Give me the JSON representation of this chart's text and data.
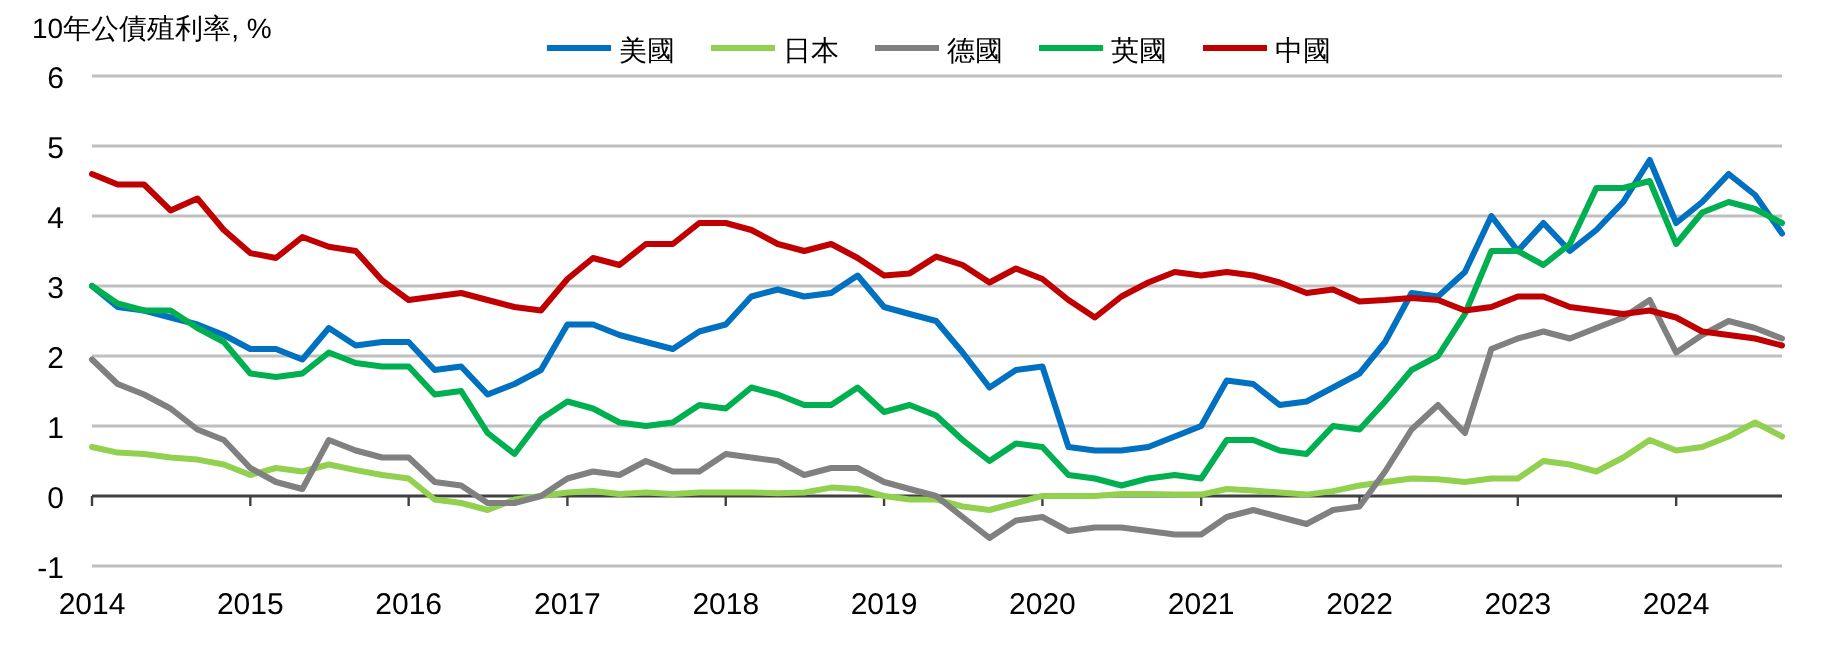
{
  "chart_data": {
    "type": "line",
    "ylabel": "10年公債殖利率, %",
    "legend": "top",
    "grid": "y",
    "line_style": "solid",
    "marker": "none",
    "x": [
      "2014-01",
      "2014-03",
      "2014-05",
      "2014-07",
      "2014-09",
      "2014-11",
      "2015-01",
      "2015-03",
      "2015-05",
      "2015-07",
      "2015-09",
      "2015-11",
      "2016-01",
      "2016-03",
      "2016-05",
      "2016-07",
      "2016-09",
      "2016-11",
      "2017-01",
      "2017-03",
      "2017-05",
      "2017-07",
      "2017-09",
      "2017-11",
      "2018-01",
      "2018-03",
      "2018-05",
      "2018-07",
      "2018-09",
      "2018-11",
      "2019-01",
      "2019-03",
      "2019-05",
      "2019-07",
      "2019-09",
      "2019-11",
      "2020-01",
      "2020-03",
      "2020-05",
      "2020-07",
      "2020-09",
      "2020-11",
      "2021-01",
      "2021-03",
      "2021-05",
      "2021-07",
      "2021-09",
      "2021-11",
      "2022-01",
      "2022-03",
      "2022-05",
      "2022-07",
      "2022-09",
      "2022-11",
      "2023-01",
      "2023-03",
      "2023-05",
      "2023-07",
      "2023-09",
      "2023-11",
      "2024-01",
      "2024-03",
      "2024-05",
      "2024-07",
      "2024-09"
    ],
    "xlim": [
      "2014-01",
      "2024-09"
    ],
    "xticks": [
      "2014",
      "2015",
      "2016",
      "2017",
      "2018",
      "2019",
      "2020",
      "2021",
      "2022",
      "2023",
      "2024"
    ],
    "ylim": [
      -1,
      6
    ],
    "yticks": [
      -1,
      0,
      1,
      2,
      3,
      4,
      5,
      6
    ],
    "series": [
      {
        "name": "美國",
        "color": "#0070c0",
        "values": [
          3.0,
          2.7,
          2.65,
          2.55,
          2.45,
          2.3,
          2.1,
          2.1,
          1.95,
          2.4,
          2.15,
          2.2,
          2.2,
          1.8,
          1.85,
          1.45,
          1.6,
          1.8,
          2.45,
          2.45,
          2.3,
          2.2,
          2.1,
          2.35,
          2.45,
          2.85,
          2.95,
          2.85,
          2.9,
          3.15,
          2.7,
          2.6,
          2.5,
          2.05,
          1.55,
          1.8,
          1.85,
          0.7,
          0.65,
          0.65,
          0.7,
          0.85,
          1.0,
          1.65,
          1.6,
          1.3,
          1.35,
          1.55,
          1.75,
          2.2,
          2.9,
          2.85,
          3.2,
          4.0,
          3.5,
          3.9,
          3.5,
          3.8,
          4.2,
          4.8,
          3.9,
          4.2,
          4.6,
          4.3,
          3.75
        ]
      },
      {
        "name": "日本",
        "color": "#92d050",
        "values": [
          0.7,
          0.62,
          0.6,
          0.55,
          0.52,
          0.45,
          0.3,
          0.4,
          0.35,
          0.45,
          0.37,
          0.3,
          0.25,
          -0.05,
          -0.1,
          -0.2,
          -0.05,
          0.0,
          0.05,
          0.07,
          0.03,
          0.05,
          0.03,
          0.05,
          0.05,
          0.05,
          0.04,
          0.05,
          0.12,
          0.1,
          0.0,
          -0.05,
          -0.05,
          -0.15,
          -0.2,
          -0.1,
          0.0,
          0.0,
          0.0,
          0.03,
          0.03,
          0.02,
          0.02,
          0.1,
          0.08,
          0.05,
          0.02,
          0.07,
          0.15,
          0.2,
          0.25,
          0.24,
          0.2,
          0.25,
          0.25,
          0.5,
          0.45,
          0.35,
          0.55,
          0.8,
          0.65,
          0.7,
          0.85,
          1.05,
          0.85
        ]
      },
      {
        "name": "德國",
        "color": "#808080",
        "values": [
          1.95,
          1.6,
          1.45,
          1.25,
          0.95,
          0.8,
          0.4,
          0.2,
          0.1,
          0.8,
          0.65,
          0.55,
          0.55,
          0.2,
          0.15,
          -0.1,
          -0.1,
          0.0,
          0.25,
          0.35,
          0.3,
          0.5,
          0.35,
          0.35,
          0.6,
          0.55,
          0.5,
          0.3,
          0.4,
          0.4,
          0.2,
          0.1,
          0.0,
          -0.3,
          -0.6,
          -0.35,
          -0.3,
          -0.5,
          -0.45,
          -0.45,
          -0.5,
          -0.55,
          -0.55,
          -0.3,
          -0.2,
          -0.3,
          -0.4,
          -0.2,
          -0.15,
          0.35,
          0.95,
          1.3,
          0.9,
          2.1,
          2.25,
          2.35,
          2.25,
          2.4,
          2.55,
          2.8,
          2.05,
          2.3,
          2.5,
          2.4,
          2.25
        ]
      },
      {
        "name": "英國",
        "color": "#00b050",
        "values": [
          3.0,
          2.75,
          2.65,
          2.65,
          2.4,
          2.2,
          1.75,
          1.7,
          1.75,
          2.05,
          1.9,
          1.85,
          1.85,
          1.45,
          1.5,
          0.9,
          0.6,
          1.1,
          1.35,
          1.25,
          1.05,
          1.0,
          1.05,
          1.3,
          1.25,
          1.55,
          1.45,
          1.3,
          1.3,
          1.55,
          1.2,
          1.3,
          1.15,
          0.8,
          0.5,
          0.75,
          0.7,
          0.3,
          0.25,
          0.15,
          0.25,
          0.3,
          0.25,
          0.8,
          0.8,
          0.65,
          0.6,
          1.0,
          0.95,
          1.35,
          1.8,
          2.0,
          2.6,
          3.5,
          3.5,
          3.3,
          3.6,
          4.4,
          4.4,
          4.5,
          3.6,
          4.05,
          4.2,
          4.1,
          3.9
        ]
      },
      {
        "name": "中國",
        "color": "#c00000",
        "values": [
          4.6,
          4.45,
          4.45,
          4.08,
          4.25,
          3.8,
          3.47,
          3.4,
          3.7,
          3.56,
          3.5,
          3.08,
          2.8,
          2.85,
          2.9,
          2.8,
          2.7,
          2.65,
          3.1,
          3.4,
          3.3,
          3.6,
          3.6,
          3.9,
          3.9,
          3.8,
          3.6,
          3.5,
          3.6,
          3.4,
          3.15,
          3.18,
          3.42,
          3.3,
          3.05,
          3.25,
          3.1,
          2.8,
          2.55,
          2.85,
          3.05,
          3.2,
          3.15,
          3.2,
          3.15,
          3.05,
          2.9,
          2.95,
          2.78,
          2.8,
          2.83,
          2.8,
          2.65,
          2.7,
          2.85,
          2.85,
          2.7,
          2.65,
          2.6,
          2.65,
          2.55,
          2.35,
          2.3,
          2.25,
          2.15
        ]
      }
    ]
  }
}
